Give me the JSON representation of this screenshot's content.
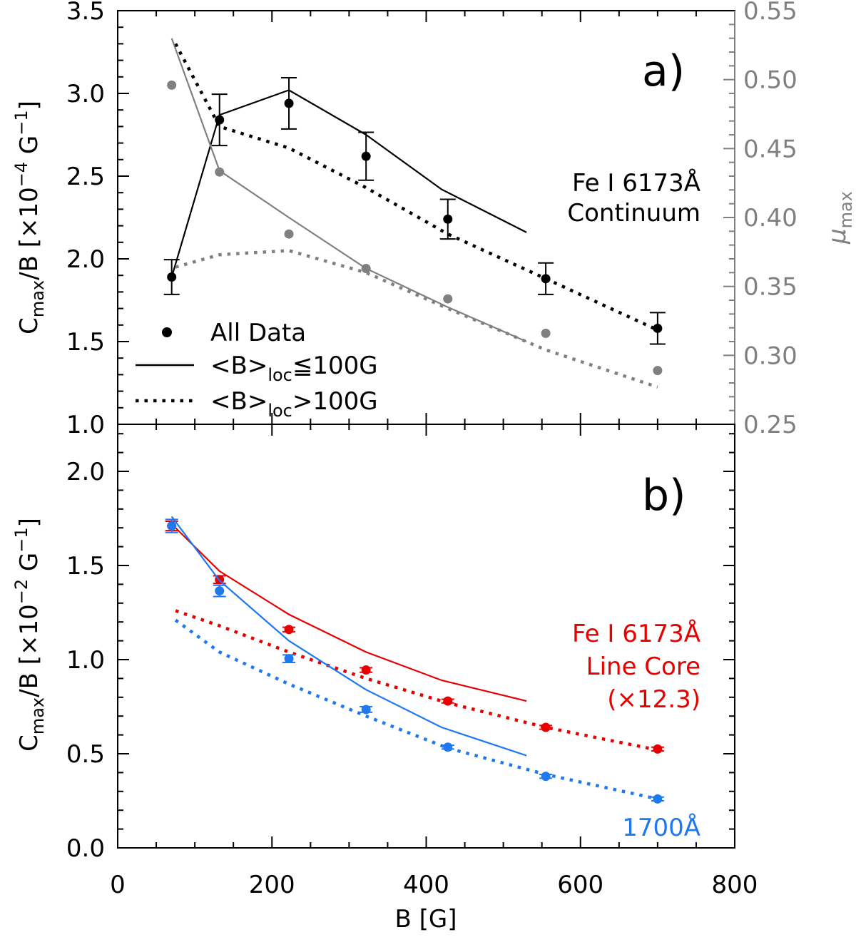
{
  "chart_data": [
    {
      "type": "line",
      "panel": "a",
      "label": "a)",
      "xlabel": "B [G]",
      "xlim": [
        0,
        800
      ],
      "ylabel": "C_max/B [×10^-4 G^-1]",
      "ylabel_parts": {
        "c": "C",
        "sub": "max",
        "mid": "/B [×10",
        "sup": "−4",
        "tail": " G",
        "sup2": "−1",
        "end": "]"
      },
      "ylim": [
        1.0,
        3.5
      ],
      "yticks": [
        1.0,
        1.5,
        2.0,
        2.5,
        3.0,
        3.5
      ],
      "ytick_labels": [
        "1.0",
        "1.5",
        "2.0",
        "2.5",
        "3.0",
        "3.5"
      ],
      "y2label": "μ_max",
      "y2label_parts": {
        "main": "μ",
        "sub": "max"
      },
      "y2lim": [
        0.25,
        0.55
      ],
      "y2ticks": [
        0.25,
        0.3,
        0.35,
        0.4,
        0.45,
        0.5,
        0.55
      ],
      "y2tick_labels": [
        "0.25",
        "0.30",
        "0.35",
        "0.40",
        "0.45",
        "0.50",
        "0.55"
      ],
      "annotation": [
        "Fe I 6173Å",
        "Continuum"
      ],
      "legend": {
        "placement": "bottom-left",
        "entries": [
          {
            "style": "dot",
            "label": "All Data"
          },
          {
            "style": "solid",
            "pre": "<B>",
            "sub": "loc",
            "post": "≦100G"
          },
          {
            "style": "dotted",
            "pre": "<B>",
            "sub": "loc",
            "post": ">100G"
          }
        ]
      },
      "series": [
        {
          "name": "All Data",
          "axis": "left",
          "color": "#000000",
          "style": "points",
          "x": [
            70,
            132,
            222,
            322,
            428,
            555,
            700
          ],
          "values": [
            1.89,
            2.84,
            2.94,
            2.62,
            2.24,
            1.88,
            1.58
          ],
          "err": [
            0.105,
            0.155,
            0.155,
            0.145,
            0.12,
            0.095,
            0.095
          ]
        },
        {
          "name": "<B>loc≦100G",
          "axis": "left",
          "color": "#000000",
          "style": "solid",
          "x": [
            70,
            132,
            222,
            322,
            420,
            530
          ],
          "values": [
            1.89,
            2.87,
            3.02,
            2.75,
            2.42,
            2.16
          ]
        },
        {
          "name": "<B>loc>100G",
          "axis": "left",
          "color": "#000000",
          "style": "dotted",
          "x": [
            75,
            132,
            222,
            322,
            428,
            555,
            700
          ],
          "values": [
            3.3,
            2.8,
            2.67,
            2.43,
            2.15,
            1.88,
            1.57
          ]
        },
        {
          "name": "μmax All Data",
          "axis": "right",
          "color": "#808080",
          "style": "points",
          "x": [
            70,
            132,
            222,
            322,
            428,
            555,
            700
          ],
          "values": [
            0.496,
            0.433,
            0.388,
            0.363,
            0.341,
            0.316,
            0.289
          ]
        },
        {
          "name": "μmax <B>loc≦100G",
          "axis": "right",
          "color": "#808080",
          "style": "solid",
          "x": [
            70,
            132,
            222,
            322,
            428,
            530
          ],
          "values": [
            0.53,
            0.434,
            0.4,
            0.363,
            0.335,
            0.31
          ]
        },
        {
          "name": "μmax <B>loc>100G",
          "axis": "right",
          "color": "#808080",
          "style": "dotted",
          "x": [
            75,
            132,
            222,
            322,
            428,
            555,
            700
          ],
          "values": [
            0.364,
            0.373,
            0.376,
            0.36,
            0.334,
            0.304,
            0.277
          ]
        }
      ]
    },
    {
      "type": "line",
      "panel": "b",
      "label": "b)",
      "xlabel": "B [G]",
      "xlabel_parts": {
        "main": "B [G]"
      },
      "xlim": [
        0,
        800
      ],
      "xticks": [
        0,
        200,
        400,
        600,
        800
      ],
      "xtick_labels": [
        "0",
        "200",
        "400",
        "600",
        "800"
      ],
      "ylabel": "C_max/B [×10^-2 G^-1]",
      "ylabel_parts": {
        "c": "C",
        "sub": "max",
        "mid": "/B [×10",
        "sup": "−2",
        "tail": " G",
        "sup2": "−1",
        "end": "]"
      },
      "ylim": [
        0.0,
        2.25
      ],
      "yticks": [
        0.0,
        0.5,
        1.0,
        1.5,
        2.0
      ],
      "ytick_labels": [
        "0.0",
        "0.5",
        "1.0",
        "1.5",
        "2.0"
      ],
      "annotations": [
        {
          "color": "#e60000",
          "lines": [
            "Fe I 6173Å",
            "Line Core",
            "(×12.3)"
          ]
        },
        {
          "color": "#1e78f0",
          "lines": [
            "1700Å"
          ]
        }
      ],
      "series": [
        {
          "name": "Fe I 6173Å Line Core (×12.3) All Data",
          "color": "#e60000",
          "style": "points",
          "x": [
            70,
            132,
            222,
            322,
            428,
            555,
            700
          ],
          "values": [
            1.71,
            1.425,
            1.16,
            0.945,
            0.78,
            0.64,
            0.525
          ],
          "err": [
            0.025,
            0.02,
            0.012,
            0.012,
            0.01,
            0.01,
            0.01
          ]
        },
        {
          "name": "Fe I 6173Å Line Core (×12.3) <B>loc≦100G",
          "color": "#e60000",
          "style": "solid",
          "x": [
            70,
            132,
            222,
            322,
            420,
            530
          ],
          "values": [
            1.72,
            1.47,
            1.24,
            1.04,
            0.89,
            0.78
          ]
        },
        {
          "name": "Fe I 6173Å Line Core (×12.3) <B>loc>100G",
          "color": "#e60000",
          "style": "dotted",
          "x": [
            75,
            132,
            222,
            322,
            428,
            555,
            700
          ],
          "values": [
            1.26,
            1.18,
            1.04,
            0.9,
            0.77,
            0.64,
            0.52
          ]
        },
        {
          "name": "1700Å All Data",
          "color": "#1e78f0",
          "style": "points",
          "x": [
            70,
            132,
            222,
            322,
            428,
            555,
            700
          ],
          "values": [
            1.71,
            1.365,
            1.005,
            0.735,
            0.535,
            0.38,
            0.26
          ],
          "err": [
            0.035,
            0.03,
            0.02,
            0.015,
            0.01,
            0.01,
            0.01
          ]
        },
        {
          "name": "1700Å <B>loc≦100G",
          "color": "#1e78f0",
          "style": "solid",
          "x": [
            70,
            132,
            222,
            322,
            420,
            530
          ],
          "values": [
            1.76,
            1.42,
            1.1,
            0.84,
            0.64,
            0.49
          ]
        },
        {
          "name": "1700Å <B>loc>100G",
          "color": "#1e78f0",
          "style": "dotted",
          "x": [
            75,
            132,
            222,
            322,
            428,
            555,
            700
          ],
          "values": [
            1.21,
            1.04,
            0.87,
            0.7,
            0.53,
            0.39,
            0.26
          ]
        }
      ]
    }
  ]
}
